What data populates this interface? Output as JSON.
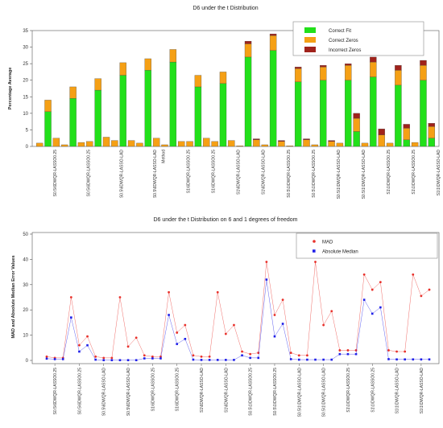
{
  "chart_data": [
    {
      "type": "bar",
      "title": "D6 under the t Distribution",
      "ylabel": "Percentage Average",
      "ylim": [
        0,
        35
      ],
      "yticks": [
        0,
        5,
        10,
        15,
        20,
        25,
        30,
        35
      ],
      "categories": [
        "1",
        "2",
        "3",
        "4",
        "5",
        "6",
        "7",
        "8",
        "9",
        "10",
        "11",
        "12",
        "13",
        "14",
        "15",
        "16",
        "17",
        "18",
        "19",
        "20",
        "21",
        "22",
        "23",
        "24",
        "25",
        "26",
        "27",
        "28",
        "29",
        "30",
        "31",
        "32",
        "33",
        "34",
        "35",
        "36",
        "37",
        "38",
        "39",
        "40",
        "41",
        "42",
        "43",
        "44",
        "45",
        "46",
        "47",
        "48"
      ],
      "xlabels": [
        {
          "text": "S0.5\\6DWQR-LASSO0.25",
          "at": 3
        },
        {
          "text": "S0.5\\6DWQR-LASSO0.25",
          "at": 7
        },
        {
          "text": "S0.5\\6DWQR-LASSO-LAD",
          "at": 11
        },
        {
          "text": "S0.5\\6DWQR-LASSO-LAD",
          "at": 15
        },
        {
          "text": "Method",
          "at": 16
        },
        {
          "text": "S1\\6DWQR-LASSO0.25",
          "at": 19
        },
        {
          "text": "S1\\6DWQR-LASSO0.25",
          "at": 22
        },
        {
          "text": "S1\\6DWQR-LASSO-LAD",
          "at": 25
        },
        {
          "text": "S1\\6DWQR-LASSO-LAD",
          "at": 28
        },
        {
          "text": "S0.5\\1\\DWQR-LASSO0.25",
          "at": 31
        },
        {
          "text": "S0.5\\1\\DWQR-LASSO0.25",
          "at": 34
        },
        {
          "text": "S0.5\\1\\DWQR-LASSO-LAD",
          "at": 37
        },
        {
          "text": "S0.5\\1\\DWQR-LASSO-LAD",
          "at": 40
        },
        {
          "text": "S1\\1\\DWQR-LASSO0.25",
          "at": 43
        },
        {
          "text": "S1\\1\\DWQR-LASSO0.25",
          "at": 46
        },
        {
          "text": "S1\\1\\DWQR-LASSO-LAD",
          "at": 49
        },
        {
          "text": "S1\\1\\DWQR-LASSO-LAD",
          "at": 52
        }
      ],
      "series": [
        {
          "name": "Correct Fit",
          "color": "#22e01a",
          "values": [
            0,
            10.5,
            0,
            0,
            14.5,
            0,
            0,
            17,
            0,
            0,
            21.5,
            0,
            0,
            23,
            0,
            0,
            25.5,
            0,
            0,
            18,
            0,
            0,
            19,
            0,
            0,
            27,
            0,
            0,
            29,
            0,
            0,
            19.5,
            0,
            0,
            20,
            0,
            0,
            20,
            4.5,
            0,
            21,
            0,
            0,
            18.5,
            2,
            0,
            20,
            2.5
          ]
        },
        {
          "name": "Correct Zeros",
          "color": "#f5a015",
          "values": [
            1,
            3.5,
            2.5,
            0.5,
            3.5,
            1.2,
            1.5,
            3.5,
            2.8,
            1.8,
            3.8,
            1.8,
            1,
            3.5,
            2.5,
            0.5,
            3.8,
            1.5,
            1.5,
            3.5,
            2.5,
            1.5,
            3.5,
            1.8,
            0.2,
            4,
            2,
            0.5,
            4.5,
            1.5,
            0.2,
            4,
            2,
            0.5,
            4,
            1.5,
            1,
            4.5,
            4,
            1,
            4.5,
            3.5,
            1,
            4.5,
            3.5,
            1.2,
            4.5,
            3.5
          ]
        },
        {
          "name": "Incorrect Zeros",
          "color": "#a0221b",
          "values": [
            0,
            0,
            0,
            0,
            0,
            0,
            0,
            0,
            0,
            0,
            0,
            0,
            0,
            0,
            0,
            0,
            0,
            0,
            0,
            0,
            0,
            0,
            0,
            0,
            0,
            0.8,
            0.3,
            0,
            0.5,
            0.3,
            0,
            0.5,
            0.3,
            0,
            0.5,
            0.3,
            0,
            0.5,
            1.5,
            0,
            1.5,
            1.8,
            0,
            1.5,
            1.2,
            0,
            1.5,
            1
          ]
        }
      ],
      "legend": "top-right"
    },
    {
      "type": "line",
      "title": "D6 under the t Distribution on 6 and 1 degrees of freedom",
      "ylabel": "MAD and Absolute Median Error Values",
      "ylim": [
        0,
        50
      ],
      "yticks": [
        0,
        10,
        20,
        30,
        40,
        50
      ],
      "x": [
        1,
        2,
        3,
        4,
        5,
        6,
        7,
        8,
        9,
        10,
        11,
        12,
        13,
        14,
        15,
        16,
        17,
        18,
        19,
        20,
        21,
        22,
        23,
        24,
        25,
        26,
        27,
        28,
        29,
        30,
        31,
        32,
        33,
        34,
        35,
        36,
        37,
        38,
        39,
        40,
        41,
        42,
        43,
        44,
        45,
        46,
        47,
        48
      ],
      "xlabels": [
        {
          "text": "S0.5\\6DWQR-LASSO0.25",
          "at": 2
        },
        {
          "text": "S0.5\\6DWQR-LASSO0.25",
          "at": 5
        },
        {
          "text": "S0.5\\6DWQR-LASSO-LAD",
          "at": 8
        },
        {
          "text": "S0.5\\6DWQR-LASSO-LAD",
          "at": 11
        },
        {
          "text": "S1\\6DWQR-LASSO0.25",
          "at": 14
        },
        {
          "text": "S1\\6DWQR-LASSO0.25",
          "at": 17
        },
        {
          "text": "S1\\6DWQR-LASSO-LAD",
          "at": 20
        },
        {
          "text": "S1\\6DWQR-LASSO-LAD",
          "at": 23
        },
        {
          "text": "S0.5\\1\\DWQR-LASSO0.25",
          "at": 26
        },
        {
          "text": "S0.5\\1\\DWQR-LASSO0.25",
          "at": 29
        },
        {
          "text": "S0.5\\1\\DWQR-LASSO-LAD",
          "at": 32
        },
        {
          "text": "S0.5\\1\\DWQR-LASSO-LAD",
          "at": 35
        },
        {
          "text": "S1\\1\\DWQR-LASSO0.25",
          "at": 38
        },
        {
          "text": "S1\\1\\DWQR-LASSO0.25",
          "at": 41
        },
        {
          "text": "S1\\1\\DWQR-LASSO-LAD",
          "at": 44
        },
        {
          "text": "S1\\1\\DWQR-LASSO-LAD",
          "at": 47
        }
      ],
      "series": [
        {
          "name": "MAD",
          "color": "#e8312b",
          "values": [
            1.5,
            1,
            1,
            25,
            6,
            9.5,
            1.5,
            1,
            1,
            25,
            5.5,
            9,
            2,
            1.5,
            1.5,
            27,
            11,
            14,
            2,
            1.5,
            1.5,
            27,
            10.5,
            14,
            3.5,
            2.5,
            3,
            39,
            18,
            24,
            3,
            2,
            2,
            39,
            14,
            19.5,
            4,
            4,
            4,
            34,
            28,
            31,
            4,
            3.5,
            3.5,
            34,
            25.5,
            28
          ]
        },
        {
          "name": "Absolute Median",
          "color": "#1f1fe8",
          "values": [
            0.7,
            0.5,
            0.5,
            17,
            3.5,
            6,
            0.3,
            0.1,
            0.1,
            0.1,
            0.1,
            0.1,
            0.8,
            0.8,
            0.8,
            18,
            6.5,
            8.5,
            0.3,
            0.2,
            0.2,
            0.2,
            0.2,
            0.2,
            2,
            1,
            1,
            32,
            9.5,
            14.5,
            0.5,
            0.3,
            0.3,
            0.3,
            0.3,
            0.3,
            2.5,
            2.5,
            2.5,
            24,
            18.5,
            21,
            0.5,
            0.4,
            0.4,
            0.4,
            0.4,
            0.4
          ]
        }
      ],
      "legend": "top-right"
    }
  ]
}
